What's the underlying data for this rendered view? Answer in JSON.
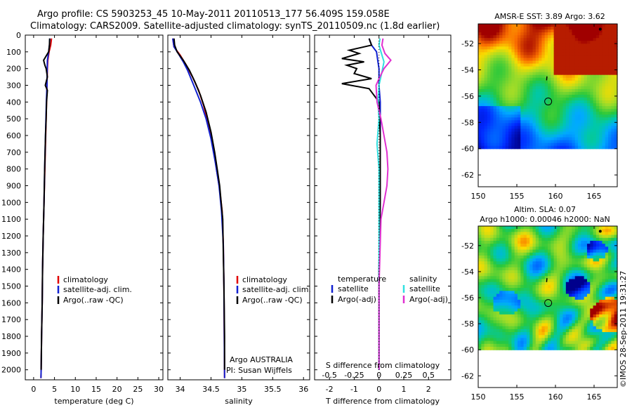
{
  "header": {
    "line1": "Argo profile: CS 5903253_45 10-May-2011 20110513_177 56.409S 159.058E",
    "line2": "Climatology: CARS2009. Satellite-adjusted climatology: synTS_20110509.nc (1.8d earlier)"
  },
  "side_stamp": "©IMOS 28-Sep-2011 19:31:27",
  "colors": {
    "climatology": "#e00000",
    "satellite": "#1020d0",
    "argo": "#000000",
    "sal_satellite": "#30e0e0",
    "sal_argo": "#e030d0"
  },
  "chart_data": [
    {
      "type": "line",
      "panel": "temperature",
      "xlabel": "temperature (deg C)",
      "ylabel": "",
      "xlim": [
        -2,
        31
      ],
      "ylim": [
        2060,
        0
      ],
      "xticks": [
        "0",
        "5",
        "10",
        "15",
        "20",
        "25",
        "30"
      ],
      "yticks": [
        "0",
        "100",
        "200",
        "300",
        "400",
        "500",
        "600",
        "700",
        "800",
        "900",
        "1000",
        "1100",
        "1200",
        "1300",
        "1400",
        "1500",
        "1600",
        "1700",
        "1800",
        "1900",
        "2000"
      ],
      "legend": [
        "climatology",
        "satellite-adj. clim.",
        "Argo(..raw -QC)"
      ],
      "series": [
        {
          "name": "climatology",
          "points": [
            [
              4.3,
              20
            ],
            [
              4.1,
              60
            ],
            [
              3.7,
              100
            ],
            [
              3.4,
              150
            ],
            [
              3.3,
              200
            ],
            [
              3.2,
              300
            ],
            [
              3.1,
              400
            ],
            [
              3.0,
              500
            ],
            [
              2.9,
              600
            ],
            [
              2.7,
              800
            ],
            [
              2.5,
              1000
            ],
            [
              2.3,
              1200
            ],
            [
              2.15,
              1400
            ],
            [
              2.05,
              1600
            ],
            [
              1.9,
              1800
            ],
            [
              1.8,
              2000
            ],
            [
              1.75,
              2050
            ]
          ]
        },
        {
          "name": "satellite-adj. clim.",
          "points": [
            [
              3.9,
              20
            ],
            [
              3.8,
              60
            ],
            [
              3.6,
              100
            ],
            [
              3.3,
              150
            ],
            [
              3.25,
              200
            ],
            [
              3.2,
              300
            ],
            [
              3.05,
              400
            ],
            [
              2.95,
              500
            ],
            [
              2.85,
              600
            ],
            [
              2.65,
              800
            ],
            [
              2.5,
              1000
            ],
            [
              2.3,
              1200
            ],
            [
              2.15,
              1400
            ],
            [
              2.05,
              1600
            ],
            [
              1.9,
              1800
            ],
            [
              1.8,
              2000
            ],
            [
              1.75,
              2050
            ]
          ]
        },
        {
          "name": "Argo(..raw -QC)",
          "points": [
            [
              3.85,
              20
            ],
            [
              3.8,
              60
            ],
            [
              3.6,
              100
            ],
            [
              2.4,
              150
            ],
            [
              2.7,
              180
            ],
            [
              3.0,
              200
            ],
            [
              3.3,
              250
            ],
            [
              2.8,
              300
            ],
            [
              3.3,
              330
            ],
            [
              3.1,
              400
            ],
            [
              3.0,
              500
            ],
            [
              2.85,
              600
            ],
            [
              2.65,
              800
            ],
            [
              2.5,
              1000
            ],
            [
              2.3,
              1200
            ],
            [
              2.15,
              1400
            ],
            [
              2.05,
              1600
            ],
            [
              1.9,
              1800
            ],
            [
              1.8,
              2000
            ]
          ]
        }
      ]
    },
    {
      "type": "line",
      "panel": "salinity",
      "xlabel": "salinity",
      "xlim": [
        33.8,
        36.1
      ],
      "ylim": [
        2060,
        0
      ],
      "xticks": [
        "34",
        "34.5",
        "35",
        "35.5",
        "36"
      ],
      "legend": [
        "climatology",
        "satellite-adj. clim.",
        "Argo(..raw -QC)"
      ],
      "annotation": [
        "Argo AUSTRALIA",
        "PI: Susan Wijffels"
      ],
      "series": [
        {
          "name": "climatology",
          "points": [
            [
              33.88,
              20
            ],
            [
              33.9,
              70
            ],
            [
              34.0,
              120
            ],
            [
              34.1,
              180
            ],
            [
              34.2,
              250
            ],
            [
              34.3,
              330
            ],
            [
              34.38,
              420
            ],
            [
              34.45,
              520
            ],
            [
              34.52,
              640
            ],
            [
              34.58,
              780
            ],
            [
              34.64,
              920
            ],
            [
              34.68,
              1050
            ],
            [
              34.7,
              1250
            ],
            [
              34.71,
              1500
            ],
            [
              34.72,
              2050
            ]
          ]
        },
        {
          "name": "satellite-adj. clim.",
          "points": [
            [
              33.88,
              20
            ],
            [
              33.9,
              70
            ],
            [
              33.97,
              110
            ],
            [
              34.05,
              160
            ],
            [
              34.12,
              210
            ],
            [
              34.22,
              300
            ],
            [
              34.33,
              400
            ],
            [
              34.42,
              500
            ],
            [
              34.5,
              620
            ],
            [
              34.57,
              760
            ],
            [
              34.63,
              900
            ],
            [
              34.67,
              1050
            ],
            [
              34.7,
              1250
            ],
            [
              34.71,
              1500
            ],
            [
              34.72,
              2050
            ]
          ]
        },
        {
          "name": "Argo(..raw -QC)",
          "points": [
            [
              33.9,
              20
            ],
            [
              33.91,
              60
            ],
            [
              33.95,
              100
            ],
            [
              34.05,
              150
            ],
            [
              34.15,
              210
            ],
            [
              34.24,
              280
            ],
            [
              34.33,
              360
            ],
            [
              34.42,
              460
            ],
            [
              34.5,
              580
            ],
            [
              34.56,
              700
            ],
            [
              34.6,
              800
            ],
            [
              34.64,
              900
            ],
            [
              34.66,
              980
            ],
            [
              34.69,
              1100
            ],
            [
              34.7,
              1300
            ],
            [
              34.71,
              1500
            ],
            [
              34.72,
              1800
            ],
            [
              34.72,
              2000
            ]
          ]
        }
      ]
    },
    {
      "type": "line",
      "panel": "difference",
      "xlabel": "T difference from climatology",
      "x2label": "S difference from climatology",
      "xlim": [
        -2.6,
        2.9
      ],
      "x2lim": [
        -0.65,
        0.725
      ],
      "ylim": [
        2060,
        0
      ],
      "xticks": [
        "-2",
        "-1",
        "0",
        "1",
        "2"
      ],
      "x2ticks": [
        "-0.5",
        "-0.25",
        "0",
        "0.25",
        "0.5"
      ],
      "legend_left_title": "temperature",
      "legend_left": [
        "satellite",
        "Argo(-adj)"
      ],
      "legend_right_title": "salinity",
      "legend_right": [
        "satellite",
        "Argo(-adj)"
      ],
      "series": [
        {
          "name": "temperature satellite",
          "axis": "T",
          "points": [
            [
              -0.4,
              20
            ],
            [
              -0.3,
              60
            ],
            [
              -0.1,
              100
            ],
            [
              -0.05,
              150
            ],
            [
              0.0,
              200
            ],
            [
              0.0,
              300
            ],
            [
              0.05,
              400
            ],
            [
              0.05,
              600
            ],
            [
              0.05,
              1000
            ],
            [
              0.0,
              1400
            ],
            [
              0.0,
              2000
            ]
          ]
        },
        {
          "name": "temperature Argo(-adj)",
          "axis": "T",
          "points": [
            [
              -0.4,
              20
            ],
            [
              -0.3,
              60
            ],
            [
              -1.2,
              90
            ],
            [
              -0.8,
              110
            ],
            [
              -1.5,
              140
            ],
            [
              -0.6,
              160
            ],
            [
              -1.3,
              180
            ],
            [
              -0.9,
              200
            ],
            [
              -1.0,
              230
            ],
            [
              -0.3,
              260
            ],
            [
              -1.5,
              290
            ],
            [
              -0.4,
              320
            ],
            [
              -0.2,
              360
            ],
            [
              0.0,
              400
            ],
            [
              0.05,
              600
            ],
            [
              0.05,
              1000
            ],
            [
              0.0,
              1400
            ],
            [
              0.0,
              2000
            ]
          ]
        },
        {
          "name": "salinity satellite",
          "axis": "S",
          "points": [
            [
              0.01,
              20
            ],
            [
              0.0,
              60
            ],
            [
              0.02,
              100
            ],
            [
              0.05,
              160
            ],
            [
              0.03,
              220
            ],
            [
              0.0,
              300
            ],
            [
              -0.01,
              400
            ],
            [
              0.0,
              500
            ],
            [
              -0.02,
              650
            ],
            [
              0.0,
              800
            ],
            [
              0.0,
              1000
            ],
            [
              0.0,
              1400
            ],
            [
              0.0,
              2000
            ]
          ]
        },
        {
          "name": "salinity Argo(-adj)",
          "axis": "S",
          "points": [
            [
              0.04,
              20
            ],
            [
              0.03,
              60
            ],
            [
              0.06,
              110
            ],
            [
              0.12,
              150
            ],
            [
              0.05,
              200
            ],
            [
              0.0,
              260
            ],
            [
              -0.03,
              300
            ],
            [
              -0.02,
              400
            ],
            [
              0.02,
              500
            ],
            [
              0.05,
              600
            ],
            [
              0.08,
              700
            ],
            [
              0.09,
              800
            ],
            [
              0.08,
              900
            ],
            [
              0.05,
              1000
            ],
            [
              0.02,
              1100
            ],
            [
              0.01,
              1300
            ],
            [
              0.0,
              1500
            ],
            [
              0.0,
              1800
            ],
            [
              0.0,
              2000
            ]
          ]
        }
      ]
    },
    {
      "type": "heatmap",
      "panel": "sst-map",
      "title": "AMSR-E SST: 3.89 Argo: 3.62",
      "xlim": [
        150,
        168
      ],
      "ylim": [
        -62.9,
        -50.5
      ],
      "data_lat_min": -60,
      "xticks": [
        "150",
        "155",
        "160",
        "165"
      ],
      "yticks": [
        "-52",
        "-54",
        "-56",
        "-58",
        "-60",
        "-62"
      ],
      "argo_position": [
        159.058,
        -56.409
      ]
    },
    {
      "type": "heatmap",
      "panel": "sla-map",
      "title": "Altim. SLA: 0.07",
      "subtitle": "Argo h1000: 0.00046 h2000: NaN",
      "xlim": [
        150,
        168
      ],
      "ylim": [
        -62.9,
        -50.5
      ],
      "data_lat_min": -60,
      "xticks": [
        "150",
        "155",
        "160",
        "165"
      ],
      "yticks": [
        "-52",
        "-54",
        "-56",
        "-58",
        "-60",
        "-62"
      ],
      "argo_position": [
        159.058,
        -56.409
      ]
    }
  ]
}
